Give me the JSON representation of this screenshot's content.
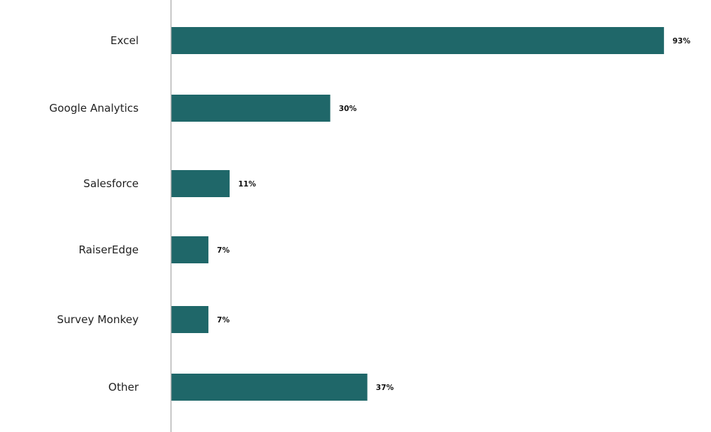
{
  "chart_data": {
    "type": "bar",
    "orientation": "horizontal",
    "categories": [
      "Excel",
      "Google Analytics",
      "Salesforce",
      "RaiserEdge",
      "Survey Monkey",
      "Other"
    ],
    "values": [
      93,
      30,
      11,
      7,
      7,
      37
    ],
    "value_labels": [
      "93%",
      "30%",
      "11%",
      "7%",
      "7%",
      "37%"
    ],
    "unit": "%",
    "xlim": [
      0,
      100
    ],
    "grid": false,
    "legend": "none",
    "bar_color": "#1f6769"
  }
}
